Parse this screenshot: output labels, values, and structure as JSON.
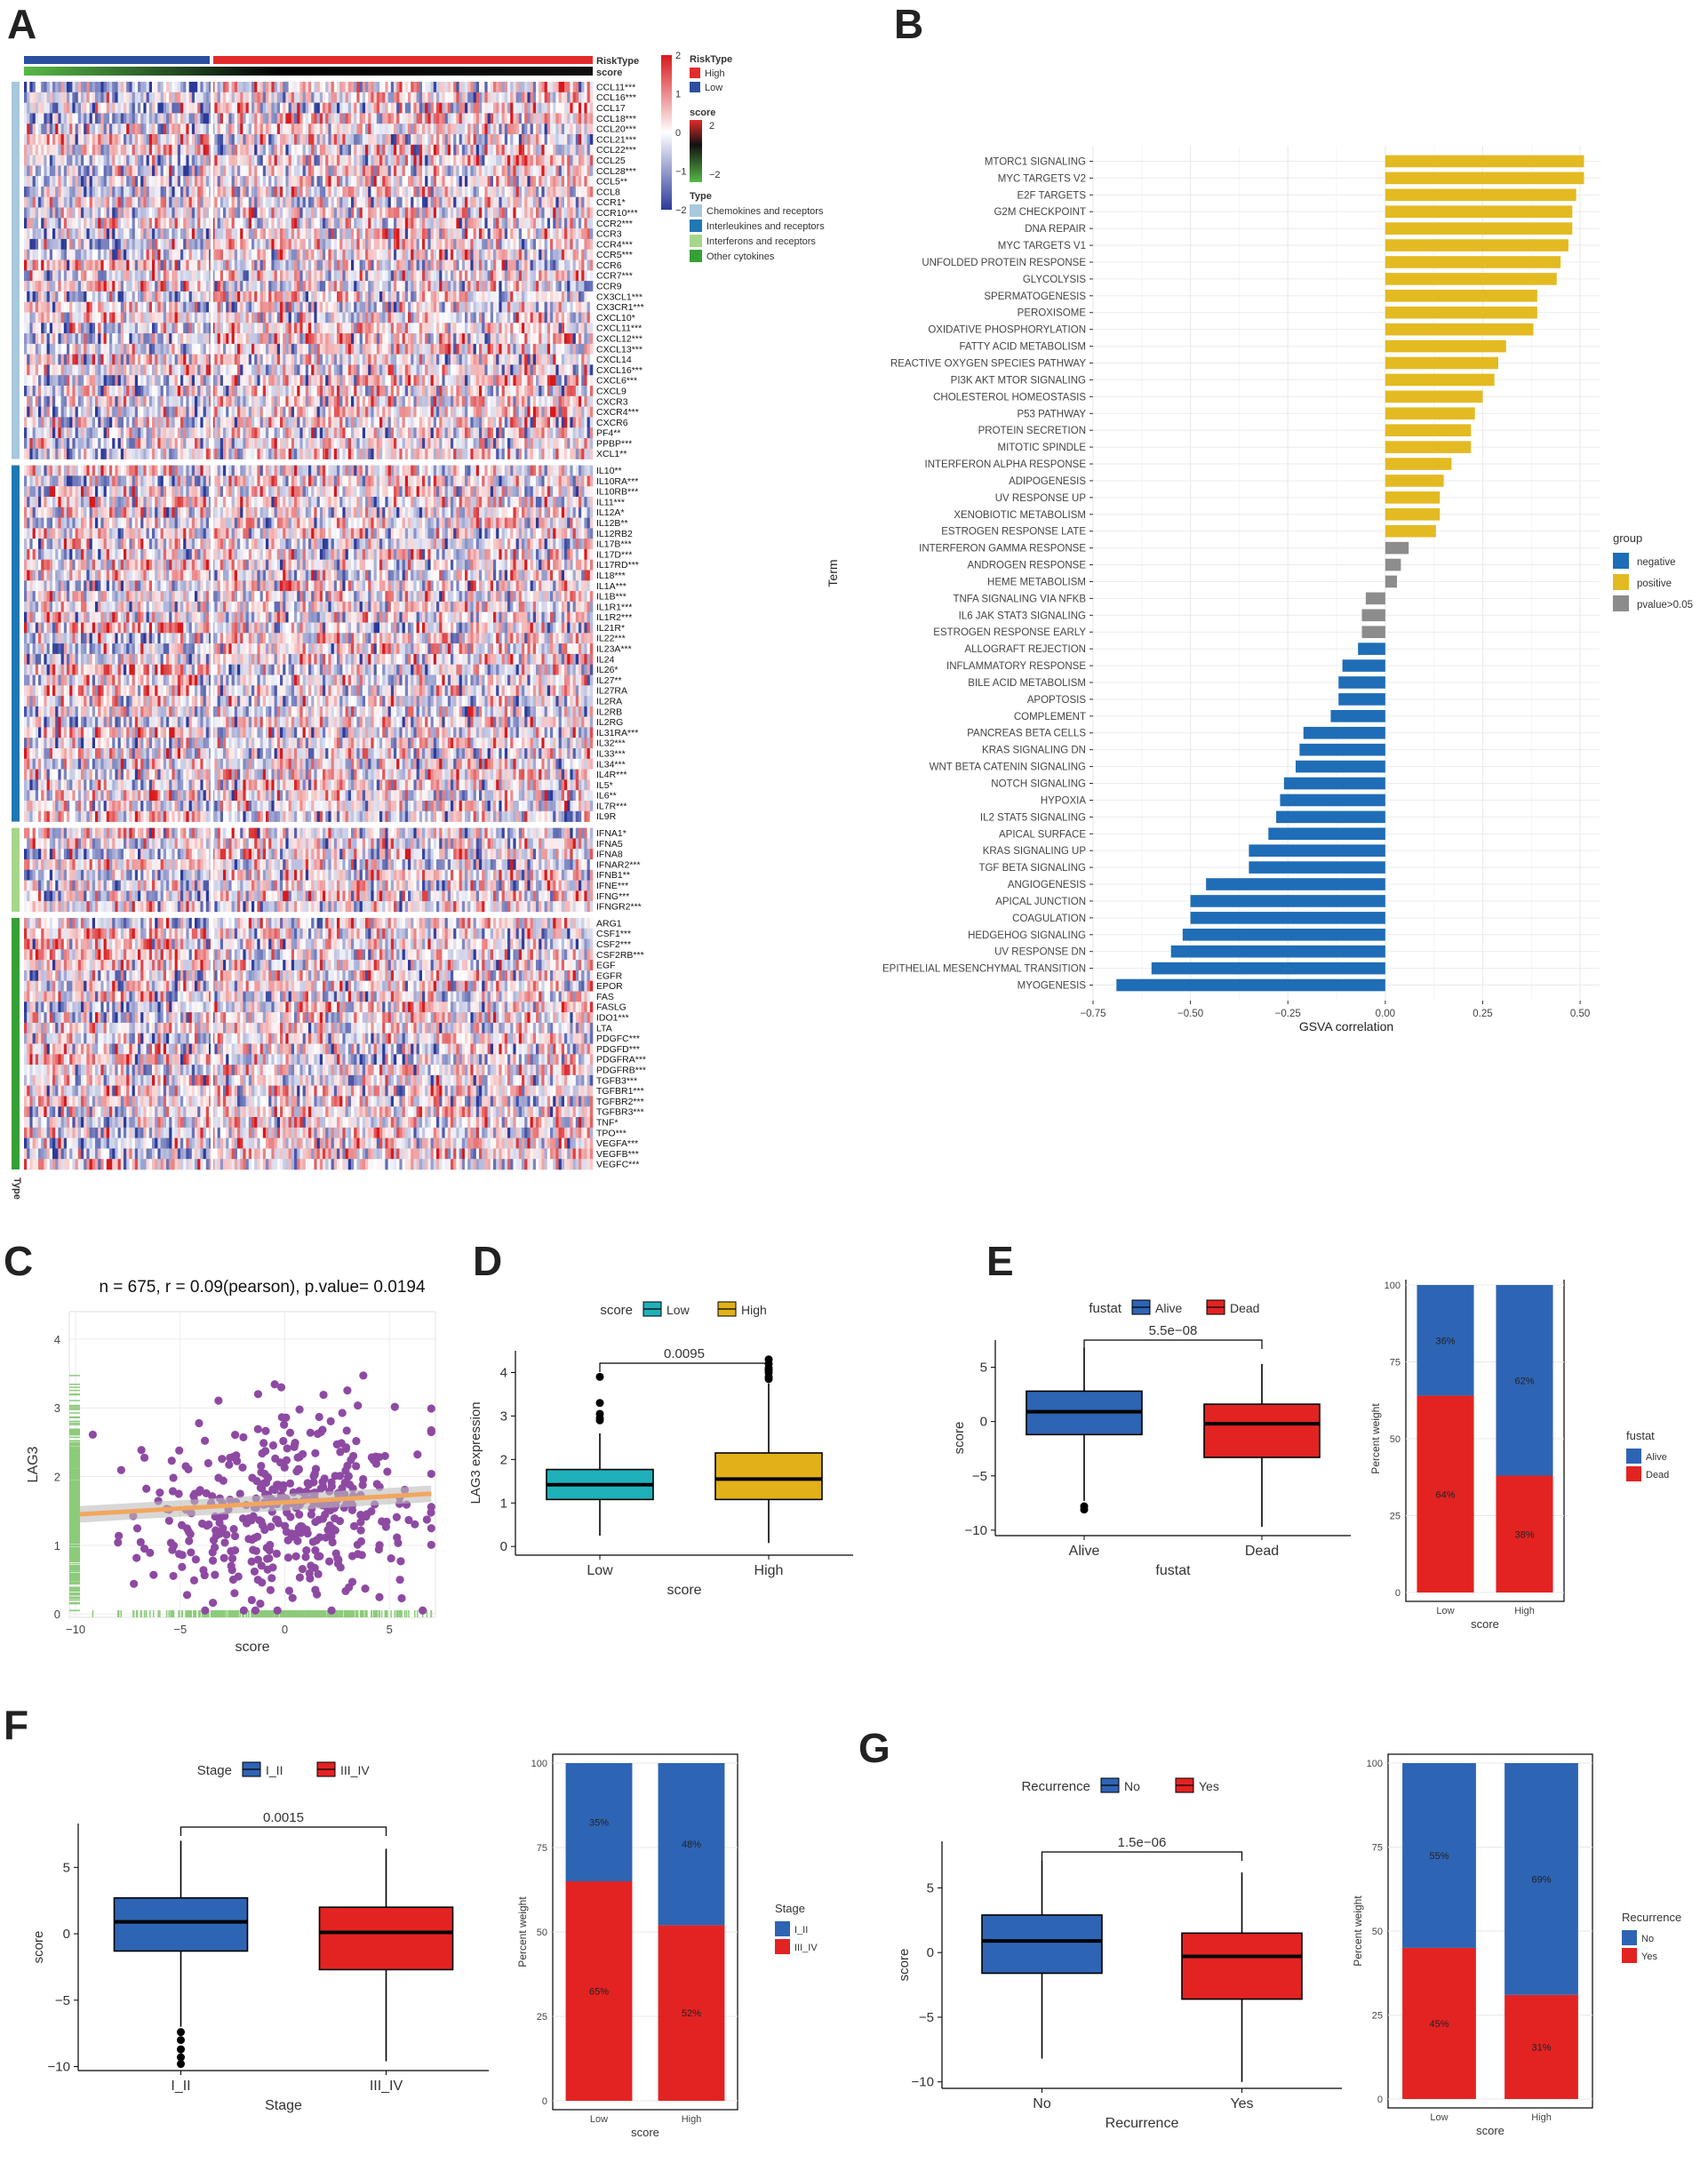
{
  "panel_letters": {
    "A": "A",
    "B": "B",
    "C": "C",
    "D": "D",
    "E": "E",
    "F": "F",
    "G": "G"
  },
  "colors": {
    "blue": "#2E64B4",
    "red": "#E32322",
    "teal": "#1FB1BA",
    "gold": "#E2B119",
    "gsva_neg": "#1F6DB6",
    "gsva_pos": "#E3BA22",
    "gsva_ns": "#8C8C8C",
    "purple": "#8E4AA3",
    "green_rug": "#8CCB7A",
    "fit": "#F2A65E",
    "type_chemo": "#A8C8DC",
    "type_il": "#1F77B4",
    "type_ifn": "#A6D68A",
    "type_other": "#35A035",
    "risk_low": "#2B4FA0",
    "risk_high": "#E32B2B",
    "score_low": "#57B847",
    "score_high": "#E32B2B"
  },
  "chart_data": [
    {
      "id": "A",
      "type": "heatmap",
      "annotation_labels": [
        "RiskType",
        "score"
      ],
      "type_annotation_label": "Type",
      "legend": {
        "color_scale_ticks": [
          "2",
          "1",
          "0",
          "−1",
          "−2"
        ],
        "risktype_title": "RiskType",
        "risktype_entries": [
          "High",
          "Low"
        ],
        "score_title": "score",
        "score_ticks": [
          "2",
          "−2"
        ],
        "type_title": "Type",
        "type_entries": [
          "Chemokines and receptors",
          "Interleukines and receptors",
          "Interferons and receptors",
          "Other cytokines"
        ]
      },
      "column_split": {
        "low_fraction": 0.33,
        "high_fraction": 0.67
      },
      "groups": [
        {
          "name": "Chemokines and receptors",
          "genes": [
            "CCL11***",
            "CCL16***",
            "CCL17",
            "CCL18***",
            "CCL20***",
            "CCL21***",
            "CCL22***",
            "CCL25",
            "CCL28***",
            "CCL5**",
            "CCL8",
            "CCR1*",
            "CCR10***",
            "CCR2***",
            "CCR3",
            "CCR4***",
            "CCR5***",
            "CCR6",
            "CCR7***",
            "CCR9",
            "CX3CL1***",
            "CX3CR1***",
            "CXCL10*",
            "CXCL11***",
            "CXCL12***",
            "CXCL13***",
            "CXCL14",
            "CXCL16***",
            "CXCL6***",
            "CXCL9",
            "CXCR3",
            "CXCR4***",
            "CXCR6",
            "PF4**",
            "PPBP***",
            "XCL1**"
          ]
        },
        {
          "name": "Interleukines and receptors",
          "genes": [
            "IL10**",
            "IL10RA***",
            "IL10RB***",
            "IL11***",
            "IL12A*",
            "IL12B**",
            "IL12RB2",
            "IL17B***",
            "IL17D***",
            "IL17RD***",
            "IL18***",
            "IL1A***",
            "IL1B***",
            "IL1R1***",
            "IL1R2***",
            "IL21R*",
            "IL22***",
            "IL23A***",
            "IL24",
            "IL26*",
            "IL27**",
            "IL27RA",
            "IL2RA",
            "IL2RB",
            "IL2RG",
            "IL31RA***",
            "IL32***",
            "IL33***",
            "IL34***",
            "IL4R***",
            "IL5*",
            "IL6**",
            "IL7R***",
            "IL9R"
          ]
        },
        {
          "name": "Interferons and receptors",
          "genes": [
            "IFNA1*",
            "IFNA5",
            "IFNA8",
            "IFNAR2***",
            "IFNB1**",
            "IFNE***",
            "IFNG***",
            "IFNGR2***"
          ]
        },
        {
          "name": "Other cytokines",
          "genes": [
            "ARG1",
            "CSF1***",
            "CSF2***",
            "CSF2RB***",
            "EGF",
            "EGFR",
            "EPOR",
            "FAS",
            "FASLG",
            "IDO1***",
            "LTA",
            "PDGFC***",
            "PDGFD***",
            "PDGFRA***",
            "PDGFRB***",
            "TGFB3***",
            "TGFBR1***",
            "TGFBR2***",
            "TGFBR3***",
            "TNF*",
            "TPO***",
            "VEGFA***",
            "VEGFB***",
            "VEGFC***"
          ]
        }
      ]
    },
    {
      "id": "B",
      "type": "bar",
      "xlabel": "GSVA correlation",
      "ylabel": "Term",
      "xlim": [
        -0.75,
        0.55
      ],
      "xticks": [
        -0.75,
        -0.5,
        -0.25,
        0,
        0.25,
        0.5
      ],
      "xtick_labels": [
        "−0.75",
        "−0.50",
        "−0.25",
        "0.00",
        "0.25",
        "0.50"
      ],
      "legend": {
        "title": "group",
        "entries": [
          {
            "label": "negative",
            "key": "negative"
          },
          {
            "label": "positive",
            "key": "positive"
          },
          {
            "label": "pvalue>0.05",
            "key": "ns"
          }
        ]
      },
      "terms": [
        {
          "name": "MTORC1 SIGNALING",
          "value": 0.51,
          "group": "positive"
        },
        {
          "name": "MYC TARGETS V2",
          "value": 0.51,
          "group": "positive"
        },
        {
          "name": "E2F TARGETS",
          "value": 0.49,
          "group": "positive"
        },
        {
          "name": "G2M CHECKPOINT",
          "value": 0.48,
          "group": "positive"
        },
        {
          "name": "DNA REPAIR",
          "value": 0.48,
          "group": "positive"
        },
        {
          "name": "MYC TARGETS V1",
          "value": 0.47,
          "group": "positive"
        },
        {
          "name": "UNFOLDED PROTEIN RESPONSE",
          "value": 0.45,
          "group": "positive"
        },
        {
          "name": "GLYCOLYSIS",
          "value": 0.44,
          "group": "positive"
        },
        {
          "name": "SPERMATOGENESIS",
          "value": 0.39,
          "group": "positive"
        },
        {
          "name": "PEROXISOME",
          "value": 0.39,
          "group": "positive"
        },
        {
          "name": "OXIDATIVE PHOSPHORYLATION",
          "value": 0.38,
          "group": "positive"
        },
        {
          "name": "FATTY ACID METABOLISM",
          "value": 0.31,
          "group": "positive"
        },
        {
          "name": "REACTIVE OXYGEN SPECIES PATHWAY",
          "value": 0.29,
          "group": "positive"
        },
        {
          "name": "PI3K AKT MTOR SIGNALING",
          "value": 0.28,
          "group": "positive"
        },
        {
          "name": "CHOLESTEROL HOMEOSTASIS",
          "value": 0.25,
          "group": "positive"
        },
        {
          "name": "P53 PATHWAY",
          "value": 0.23,
          "group": "positive"
        },
        {
          "name": "PROTEIN SECRETION",
          "value": 0.22,
          "group": "positive"
        },
        {
          "name": "MITOTIC SPINDLE",
          "value": 0.22,
          "group": "positive"
        },
        {
          "name": "INTERFERON ALPHA RESPONSE",
          "value": 0.17,
          "group": "positive"
        },
        {
          "name": "ADIPOGENESIS",
          "value": 0.15,
          "group": "positive"
        },
        {
          "name": "UV RESPONSE UP",
          "value": 0.14,
          "group": "positive"
        },
        {
          "name": "XENOBIOTIC METABOLISM",
          "value": 0.14,
          "group": "positive"
        },
        {
          "name": "ESTROGEN RESPONSE LATE",
          "value": 0.13,
          "group": "positive"
        },
        {
          "name": "INTERFERON GAMMA RESPONSE",
          "value": 0.06,
          "group": "ns"
        },
        {
          "name": "ANDROGEN RESPONSE",
          "value": 0.04,
          "group": "ns"
        },
        {
          "name": "HEME METABOLISM",
          "value": 0.03,
          "group": "ns"
        },
        {
          "name": "TNFA SIGNALING VIA NFKB",
          "value": -0.05,
          "group": "ns"
        },
        {
          "name": "IL6 JAK STAT3 SIGNALING",
          "value": -0.06,
          "group": "ns"
        },
        {
          "name": "ESTROGEN RESPONSE EARLY",
          "value": -0.06,
          "group": "ns"
        },
        {
          "name": "ALLOGRAFT REJECTION",
          "value": -0.07,
          "group": "negative"
        },
        {
          "name": "INFLAMMATORY RESPONSE",
          "value": -0.11,
          "group": "negative"
        },
        {
          "name": "BILE ACID METABOLISM",
          "value": -0.12,
          "group": "negative"
        },
        {
          "name": "APOPTOSIS",
          "value": -0.12,
          "group": "negative"
        },
        {
          "name": "COMPLEMENT",
          "value": -0.14,
          "group": "negative"
        },
        {
          "name": "PANCREAS BETA CELLS",
          "value": -0.21,
          "group": "negative"
        },
        {
          "name": "KRAS SIGNALING DN",
          "value": -0.22,
          "group": "negative"
        },
        {
          "name": "WNT BETA CATENIN SIGNALING",
          "value": -0.23,
          "group": "negative"
        },
        {
          "name": "NOTCH SIGNALING",
          "value": -0.26,
          "group": "negative"
        },
        {
          "name": "HYPOXIA",
          "value": -0.27,
          "group": "negative"
        },
        {
          "name": "IL2 STAT5 SIGNALING",
          "value": -0.28,
          "group": "negative"
        },
        {
          "name": "APICAL SURFACE",
          "value": -0.3,
          "group": "negative"
        },
        {
          "name": "KRAS SIGNALING UP",
          "value": -0.35,
          "group": "negative"
        },
        {
          "name": "TGF BETA SIGNALING",
          "value": -0.35,
          "group": "negative"
        },
        {
          "name": "ANGIOGENESIS",
          "value": -0.46,
          "group": "negative"
        },
        {
          "name": "APICAL JUNCTION",
          "value": -0.5,
          "group": "negative"
        },
        {
          "name": "COAGULATION",
          "value": -0.5,
          "group": "negative"
        },
        {
          "name": "HEDGEHOG SIGNALING",
          "value": -0.52,
          "group": "negative"
        },
        {
          "name": "UV RESPONSE DN",
          "value": -0.55,
          "group": "negative"
        },
        {
          "name": "EPITHELIAL MESENCHYMAL TRANSITION",
          "value": -0.6,
          "group": "negative"
        },
        {
          "name": "MYOGENESIS",
          "value": -0.69,
          "group": "negative"
        }
      ]
    },
    {
      "id": "C",
      "type": "scatter",
      "title": "n = 675, r = 0.09(pearson), p.value= 0.0194",
      "xlabel": "score",
      "ylabel": "LAG3",
      "xlim": [
        -10.3,
        7.2
      ],
      "ylim": [
        -0.05,
        4.4
      ],
      "xticks": [
        -10,
        -5,
        0,
        5
      ],
      "xtick_labels": [
        "−10",
        "−5",
        "0",
        "5"
      ],
      "yticks": [
        0,
        1,
        2,
        3,
        4
      ],
      "ytick_labels": [
        "0",
        "1",
        "2",
        "3",
        "4"
      ],
      "fit": {
        "x": [
          -9.8,
          7.0
        ],
        "y": [
          1.45,
          1.75
        ]
      },
      "n": 675
    },
    {
      "id": "D",
      "type": "box",
      "legend_title": "score",
      "legend_entries": [
        "Low",
        "High"
      ],
      "categories": [
        "Low",
        "High"
      ],
      "xlabel": "score",
      "ylabel": "LAG3 expression",
      "ylim": [
        -0.2,
        4.5
      ],
      "yticks": [
        0,
        1,
        2,
        3,
        4
      ],
      "ytick_labels": [
        "0",
        "1",
        "2",
        "3",
        "4"
      ],
      "pvalue": "0.0095",
      "boxes": [
        {
          "name": "Low",
          "color": "teal",
          "q1": 1.08,
          "median": 1.42,
          "q3": 1.77,
          "lower": 0.25,
          "upper": 2.6,
          "outliers": [
            2.9,
            2.95,
            3.05,
            3.3,
            3.9
          ]
        },
        {
          "name": "High",
          "color": "gold",
          "q1": 1.08,
          "median": 1.55,
          "q3": 2.15,
          "lower": 0.08,
          "upper": 3.75,
          "outliers": [
            3.85,
            3.9,
            4.0,
            4.05,
            4.1,
            4.2,
            4.3
          ]
        }
      ]
    },
    {
      "id": "E_box",
      "type": "box",
      "legend_title": "fustat",
      "legend_entries": [
        "Alive",
        "Dead"
      ],
      "categories": [
        "Alive",
        "Dead"
      ],
      "xlabel": "fustat",
      "ylabel": "score",
      "ylim": [
        -10.5,
        7.5
      ],
      "yticks": [
        5,
        0,
        -5,
        -10
      ],
      "ytick_labels": [
        "5",
        "0",
        "−5",
        "−10"
      ],
      "pvalue": "5.5e−08",
      "boxes": [
        {
          "name": "Alive",
          "color": "blue",
          "q1": -1.2,
          "median": 0.9,
          "q3": 2.8,
          "lower": -7.3,
          "upper": 6.8,
          "outliers": [
            -7.8,
            -8.1
          ]
        },
        {
          "name": "Dead",
          "color": "red",
          "q1": -3.3,
          "median": -0.2,
          "q3": 1.6,
          "lower": -9.7,
          "upper": 5.3,
          "outliers": []
        }
      ]
    },
    {
      "id": "E_stack",
      "type": "stacked_bar",
      "categories": [
        "Low",
        "High"
      ],
      "xlabel": "score",
      "ylabel": "Percent weight",
      "yticks": [
        0,
        25,
        50,
        75,
        100
      ],
      "ytick_labels": [
        "0",
        "25",
        "50",
        "75",
        "100"
      ],
      "legend_title": "fustat",
      "series": [
        {
          "name": "Alive",
          "color": "blue",
          "values": [
            36,
            62
          ],
          "labels": [
            "36%",
            "62%"
          ]
        },
        {
          "name": "Dead",
          "color": "red",
          "values": [
            64,
            38
          ],
          "labels": [
            "64%",
            "38%"
          ]
        }
      ]
    },
    {
      "id": "F_box",
      "type": "box",
      "legend_title": "Stage",
      "legend_entries": [
        "I_II",
        "III_IV"
      ],
      "categories": [
        "I_II",
        "III_IV"
      ],
      "xlabel": "Stage",
      "ylabel": "score",
      "ylim": [
        -10.3,
        8.3
      ],
      "yticks": [
        5,
        0,
        -5,
        -10
      ],
      "ytick_labels": [
        "5",
        "0",
        "−5",
        "−10"
      ],
      "pvalue": "0.0015",
      "boxes": [
        {
          "name": "I_II",
          "color": "blue",
          "q1": -1.3,
          "median": 0.9,
          "q3": 2.7,
          "lower": -7.0,
          "upper": 7.0,
          "outliers": [
            -7.4,
            -8.0,
            -8.7,
            -9.3,
            -9.8
          ]
        },
        {
          "name": "III_IV",
          "color": "red",
          "q1": -2.7,
          "median": 0.1,
          "q3": 2.0,
          "lower": -9.6,
          "upper": 6.4,
          "outliers": []
        }
      ]
    },
    {
      "id": "F_stack",
      "type": "stacked_bar",
      "categories": [
        "Low",
        "High"
      ],
      "xlabel": "score",
      "ylabel": "Percent weight",
      "yticks": [
        0,
        25,
        50,
        75,
        100
      ],
      "ytick_labels": [
        "0",
        "25",
        "50",
        "75",
        "100"
      ],
      "legend_title": "Stage",
      "series": [
        {
          "name": "I_II",
          "color": "blue",
          "values": [
            35,
            48
          ],
          "labels": [
            "35%",
            "48%"
          ]
        },
        {
          "name": "III_IV",
          "color": "red",
          "values": [
            65,
            52
          ],
          "labels": [
            "65%",
            "52%"
          ]
        }
      ]
    },
    {
      "id": "G_box",
      "type": "box",
      "legend_title": "Recurrence",
      "legend_entries": [
        "No",
        "Yes"
      ],
      "categories": [
        "No",
        "Yes"
      ],
      "xlabel": "Recurrence",
      "ylabel": "score",
      "ylim": [
        -10.5,
        8.6
      ],
      "yticks": [
        5,
        0,
        -5,
        -10
      ],
      "ytick_labels": [
        "5",
        "0",
        "−5",
        "−10"
      ],
      "pvalue": "1.5e−06",
      "boxes": [
        {
          "name": "No",
          "color": "blue",
          "q1": -1.6,
          "median": 0.9,
          "q3": 2.9,
          "lower": -8.2,
          "upper": 7.1,
          "outliers": []
        },
        {
          "name": "Yes",
          "color": "red",
          "q1": -3.6,
          "median": -0.3,
          "q3": 1.5,
          "lower": -10.0,
          "upper": 6.2,
          "outliers": []
        }
      ]
    },
    {
      "id": "G_stack",
      "type": "stacked_bar",
      "categories": [
        "Low",
        "High"
      ],
      "xlabel": "score",
      "ylabel": "Percent weight",
      "yticks": [
        0,
        25,
        50,
        75,
        100
      ],
      "ytick_labels": [
        "0",
        "25",
        "50",
        "75",
        "100"
      ],
      "legend_title": "Recurrence",
      "series": [
        {
          "name": "No",
          "color": "blue",
          "values": [
            55,
            69
          ],
          "labels": [
            "55%",
            "69%"
          ]
        },
        {
          "name": "Yes",
          "color": "red",
          "values": [
            45,
            31
          ],
          "labels": [
            "45%",
            "31%"
          ]
        }
      ]
    }
  ]
}
